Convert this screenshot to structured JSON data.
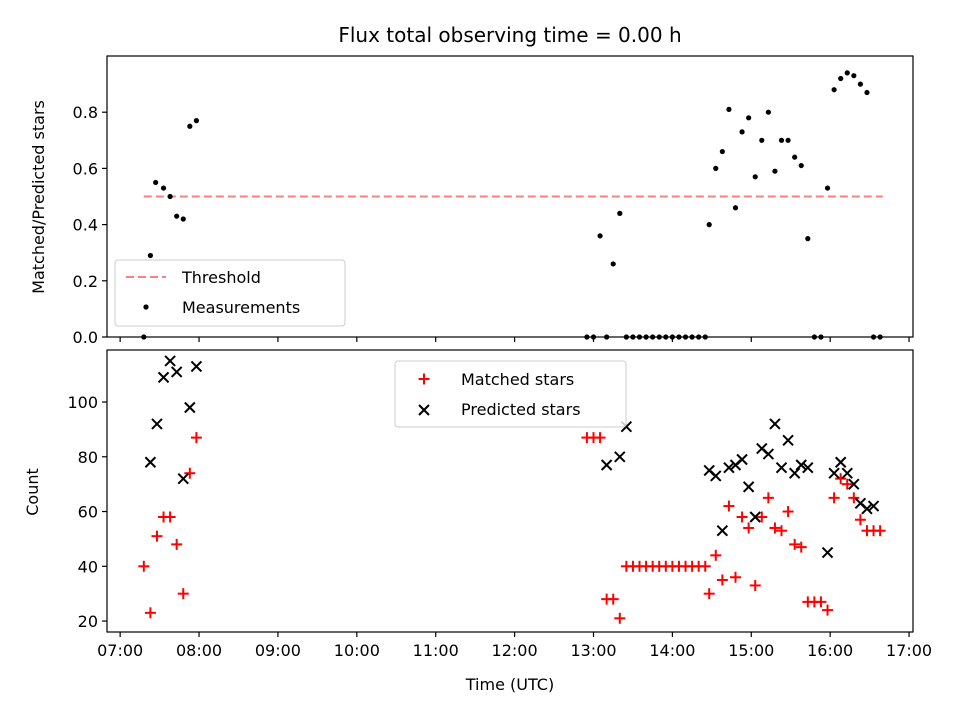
{
  "chart_data": {
    "title": "Flux total observing time = 0.00 h",
    "xlabel": "Time (UTC)",
    "x_ticks": [
      "07:00",
      "08:00",
      "09:00",
      "10:00",
      "11:00",
      "12:00",
      "13:00",
      "14:00",
      "15:00",
      "16:00",
      "17:00"
    ],
    "xlim": [
      "06:50",
      "17:03"
    ],
    "colors": {
      "threshold": "#ff7f7f",
      "measurements": "#000000",
      "matched": "#ff0000",
      "predicted": "#000000"
    },
    "subplots": [
      {
        "type": "scatter",
        "ylabel": "Matched/Predicted stars",
        "ylim": [
          0,
          1.0
        ],
        "y_ticks": [
          "0.0",
          "0.2",
          "0.4",
          "0.6",
          "0.8"
        ],
        "y_tick_values": [
          0,
          0.2,
          0.4,
          0.6,
          0.8
        ],
        "legend_position": "lower-left",
        "threshold": {
          "name": "Threshold",
          "x": [
            "07:18",
            "16:40"
          ],
          "y": 0.5
        },
        "series": [
          {
            "name": "Measurements",
            "marker": "dot",
            "x": [
              "07:18",
              "07:23",
              "07:27",
              "07:33",
              "07:38",
              "07:43",
              "07:48",
              "07:53",
              "07:58",
              "12:55",
              "13:00",
              "13:05",
              "13:10",
              "13:15",
              "13:20",
              "13:25",
              "13:30",
              "13:35",
              "13:40",
              "13:45",
              "13:50",
              "13:55",
              "14:00",
              "14:05",
              "14:10",
              "14:15",
              "14:20",
              "14:25",
              "14:28",
              "14:33",
              "14:38",
              "14:43",
              "14:48",
              "14:53",
              "14:58",
              "15:03",
              "15:08",
              "15:13",
              "15:18",
              "15:23",
              "15:28",
              "15:33",
              "15:38",
              "15:43",
              "15:48",
              "15:53",
              "15:58",
              "16:03",
              "16:08",
              "16:13",
              "16:18",
              "16:23",
              "16:28",
              "16:33",
              "16:38"
            ],
            "y": [
              0.0,
              0.29,
              0.55,
              0.53,
              0.5,
              0.43,
              0.42,
              0.75,
              0.77,
              0.0,
              0.0,
              0.36,
              0.0,
              0.26,
              0.44,
              0.0,
              0.0,
              0.0,
              0.0,
              0.0,
              0.0,
              0.0,
              0.0,
              0.0,
              0.0,
              0.0,
              0.0,
              0.0,
              0.4,
              0.6,
              0.66,
              0.81,
              0.46,
              0.73,
              0.78,
              0.57,
              0.7,
              0.8,
              0.59,
              0.7,
              0.7,
              0.64,
              0.61,
              0.35,
              0.0,
              0.0,
              0.53,
              0.88,
              0.92,
              0.94,
              0.93,
              0.9,
              0.87,
              0.0,
              0.0
            ]
          }
        ]
      },
      {
        "type": "scatter",
        "ylabel": "Count",
        "ylim": [
          16,
          119
        ],
        "y_ticks": [
          "20",
          "40",
          "60",
          "80",
          "100"
        ],
        "y_tick_values": [
          20,
          40,
          60,
          80,
          100
        ],
        "legend_position": "upper-center",
        "series": [
          {
            "name": "Matched stars",
            "marker": "plus",
            "x": [
              "07:18",
              "07:23",
              "07:28",
              "07:33",
              "07:38",
              "07:43",
              "07:48",
              "07:53",
              "07:58",
              "12:55",
              "13:00",
              "13:05",
              "13:10",
              "13:15",
              "13:20",
              "13:25",
              "13:30",
              "13:35",
              "13:40",
              "13:45",
              "13:50",
              "13:55",
              "14:00",
              "14:05",
              "14:10",
              "14:15",
              "14:20",
              "14:25",
              "14:28",
              "14:33",
              "14:38",
              "14:43",
              "14:48",
              "14:53",
              "14:58",
              "15:03",
              "15:08",
              "15:13",
              "15:18",
              "15:23",
              "15:28",
              "15:33",
              "15:38",
              "15:43",
              "15:48",
              "15:53",
              "15:58",
              "16:03",
              "16:08",
              "16:13",
              "16:18",
              "16:23",
              "16:28",
              "16:33",
              "16:38"
            ],
            "y": [
              40,
              23,
              51,
              58,
              58,
              48,
              30,
              74,
              87,
              87,
              87,
              87,
              28,
              28,
              21,
              40,
              40,
              40,
              40,
              40,
              40,
              40,
              40,
              40,
              40,
              40,
              40,
              40,
              30,
              44,
              35,
              62,
              36,
              58,
              54,
              33,
              58,
              65,
              54,
              53,
              60,
              48,
              47,
              27,
              27,
              27,
              24,
              65,
              72,
              70,
              65,
              57,
              53,
              53,
              53
            ]
          },
          {
            "name": "Predicted stars",
            "marker": "x",
            "x": [
              "07:23",
              "07:28",
              "07:33",
              "07:38",
              "07:43",
              "07:48",
              "07:53",
              "07:58",
              "13:10",
              "13:20",
              "13:25",
              "14:28",
              "14:33",
              "14:38",
              "14:43",
              "14:48",
              "14:53",
              "14:58",
              "15:03",
              "15:08",
              "15:13",
              "15:18",
              "15:23",
              "15:28",
              "15:33",
              "15:38",
              "15:43",
              "15:58",
              "16:03",
              "16:08",
              "16:13",
              "16:18",
              "16:23",
              "16:28",
              "16:33"
            ],
            "y": [
              78,
              92,
              109,
              115,
              111,
              72,
              98,
              113,
              77,
              80,
              91,
              75,
              73,
              53,
              76,
              77,
              79,
              69,
              58,
              83,
              81,
              92,
              76,
              86,
              74,
              77,
              76,
              45,
              74,
              78,
              74,
              70,
              63,
              61,
              62
            ]
          }
        ]
      }
    ]
  }
}
